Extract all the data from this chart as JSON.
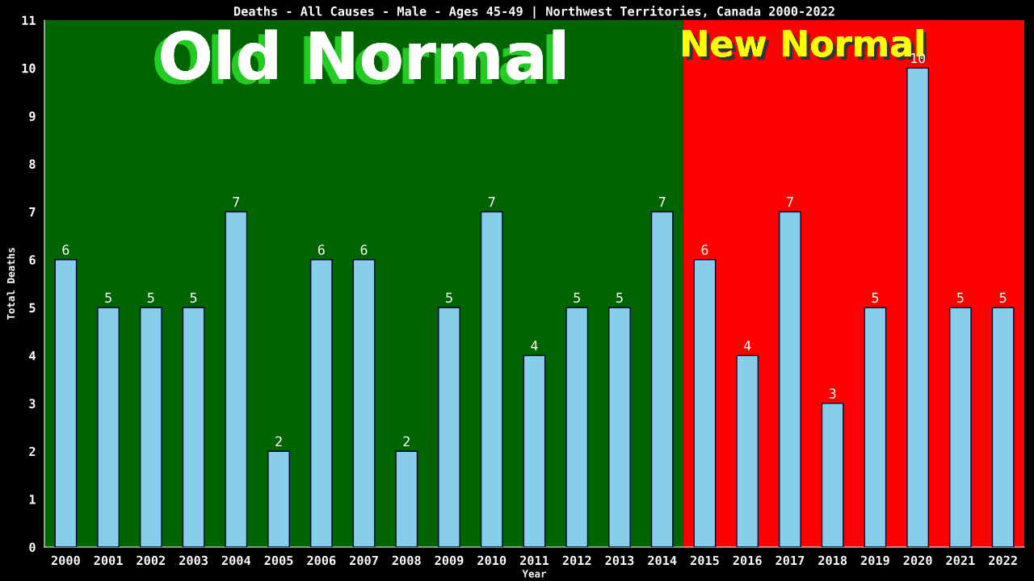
{
  "chart_data": {
    "type": "bar",
    "title": "Deaths - All Causes - Male - Ages 45-49 | Northwest Territories, Canada 2000-2022",
    "xlabel": "Year",
    "ylabel": "Total Deaths",
    "categories": [
      "2000",
      "2001",
      "2002",
      "2003",
      "2004",
      "2005",
      "2006",
      "2007",
      "2008",
      "2009",
      "2010",
      "2011",
      "2012",
      "2013",
      "2014",
      "2015",
      "2016",
      "2017",
      "2018",
      "2019",
      "2020",
      "2021",
      "2022"
    ],
    "values": [
      6,
      5,
      5,
      5,
      7,
      2,
      6,
      6,
      2,
      5,
      7,
      4,
      5,
      5,
      7,
      6,
      4,
      7,
      3,
      5,
      10,
      5,
      5
    ],
    "color": "#87ceeb",
    "data_labels": true,
    "ylim": [
      0,
      11
    ],
    "yticks": [
      0,
      1,
      2,
      3,
      4,
      5,
      6,
      7,
      8,
      9,
      10,
      11
    ],
    "grid": false,
    "legend": false,
    "bands": [
      {
        "axis": "x",
        "from": "2000",
        "to": "2014",
        "label": "Old Normal",
        "color": "#006400"
      },
      {
        "axis": "x",
        "from": "2015",
        "to": "2022",
        "label": "New Normal",
        "color": "#ff0000"
      }
    ]
  }
}
